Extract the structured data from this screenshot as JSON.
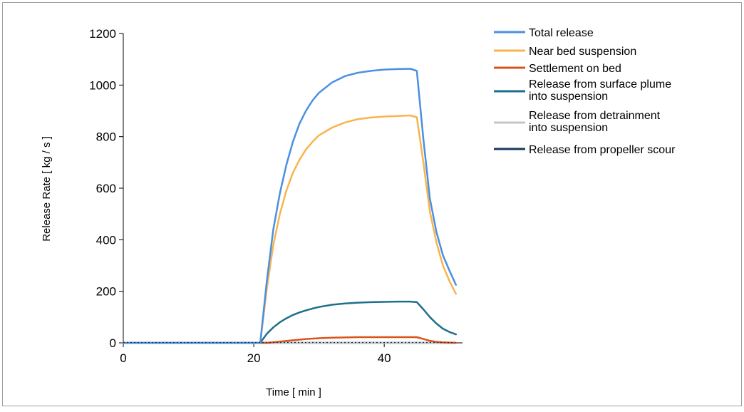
{
  "chart_data": {
    "type": "line",
    "title": "",
    "xlabel": "Time [ min ]",
    "ylabel": "Release Rate [ kg / s ]",
    "xlim": [
      0,
      52
    ],
    "ylim": [
      0,
      1200
    ],
    "xticks": [
      0,
      20,
      40
    ],
    "yticks": [
      0,
      200,
      400,
      600,
      800,
      1000,
      1200
    ],
    "grid": false,
    "legend_position": "top-right (outside plot)",
    "series": [
      {
        "name": "Total release",
        "color": "#4a90e2",
        "x": [
          0,
          21,
          22,
          23,
          24,
          25,
          26,
          27,
          28,
          29,
          30,
          32,
          34,
          36,
          38,
          40,
          42,
          44,
          45,
          46,
          47,
          48,
          49,
          50,
          51
        ],
        "y": [
          0,
          0,
          240,
          440,
          580,
          690,
          780,
          850,
          900,
          940,
          970,
          1010,
          1035,
          1048,
          1055,
          1060,
          1062,
          1063,
          1055,
          790,
          560,
          430,
          340,
          280,
          225
        ]
      },
      {
        "name": "Near bed suspension",
        "color": "#f9b44c",
        "x": [
          0,
          21,
          22,
          23,
          24,
          25,
          26,
          27,
          28,
          29,
          30,
          32,
          34,
          36,
          38,
          40,
          42,
          44,
          45,
          46,
          47,
          48,
          49,
          50,
          51
        ],
        "y": [
          0,
          0,
          210,
          380,
          500,
          590,
          660,
          710,
          750,
          780,
          805,
          835,
          855,
          868,
          874,
          878,
          880,
          882,
          875,
          700,
          510,
          390,
          300,
          240,
          190
        ]
      },
      {
        "name": "Settlement on bed",
        "color": "#d8541b",
        "x": [
          0,
          22,
          24,
          26,
          28,
          30,
          32,
          34,
          36,
          38,
          40,
          42,
          44,
          45,
          46,
          47,
          48,
          49,
          50,
          51
        ],
        "y": [
          0,
          0,
          5,
          10,
          15,
          18,
          20,
          21,
          22,
          22,
          22,
          22,
          22,
          22,
          15,
          8,
          4,
          2,
          1,
          0
        ]
      },
      {
        "name": "Release from surface plume into suspension",
        "color": "#1e6f8c",
        "x": [
          0,
          21,
          22,
          23,
          24,
          25,
          26,
          27,
          28,
          29,
          30,
          32,
          34,
          36,
          38,
          40,
          42,
          44,
          45,
          46,
          47,
          48,
          49,
          50,
          51
        ],
        "y": [
          0,
          0,
          35,
          60,
          80,
          95,
          108,
          118,
          126,
          133,
          139,
          148,
          153,
          156,
          158,
          159,
          160,
          160,
          158,
          130,
          100,
          75,
          55,
          42,
          33
        ]
      },
      {
        "name": "Release from detrainment into suspension",
        "color": "#c7c7c7",
        "x": [
          0,
          51
        ],
        "y": [
          0,
          0
        ]
      },
      {
        "name": "Release from propeller scour",
        "color": "#173a5e",
        "x": [
          0,
          51
        ],
        "y": [
          0,
          0
        ]
      }
    ]
  }
}
